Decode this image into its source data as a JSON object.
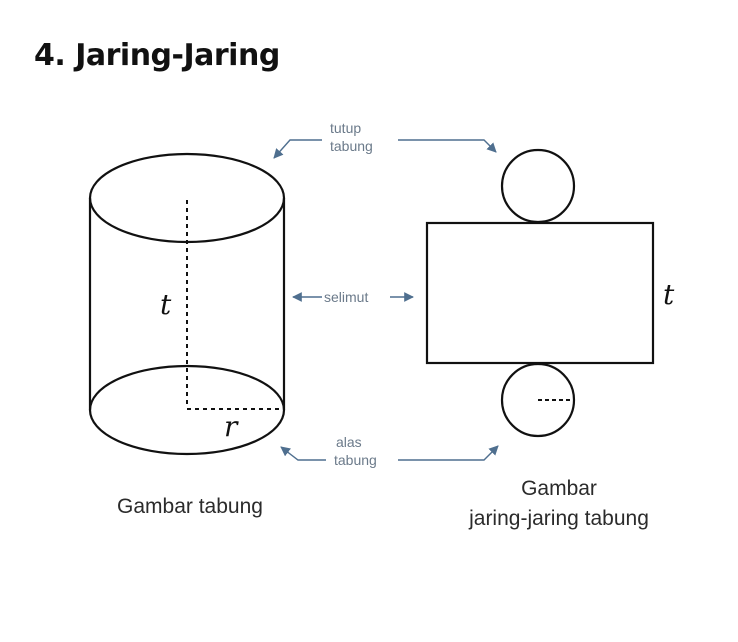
{
  "heading": "4. Jaring-Jaring",
  "labels": {
    "tutup_line1": "tutup",
    "tutup_line2": "tabung",
    "selimut": "selimut",
    "alas_line1": "alas",
    "alas_line2": "tabung",
    "height_left": "t",
    "radius": "r",
    "height_right": "t"
  },
  "captions": {
    "left": "Gambar tabung",
    "right_line1": "Gambar",
    "right_line2": "jaring-jaring tabung"
  },
  "colors": {
    "stroke": "#111111",
    "arrow": "#4f6f8f",
    "label": "#6b7a8a"
  }
}
